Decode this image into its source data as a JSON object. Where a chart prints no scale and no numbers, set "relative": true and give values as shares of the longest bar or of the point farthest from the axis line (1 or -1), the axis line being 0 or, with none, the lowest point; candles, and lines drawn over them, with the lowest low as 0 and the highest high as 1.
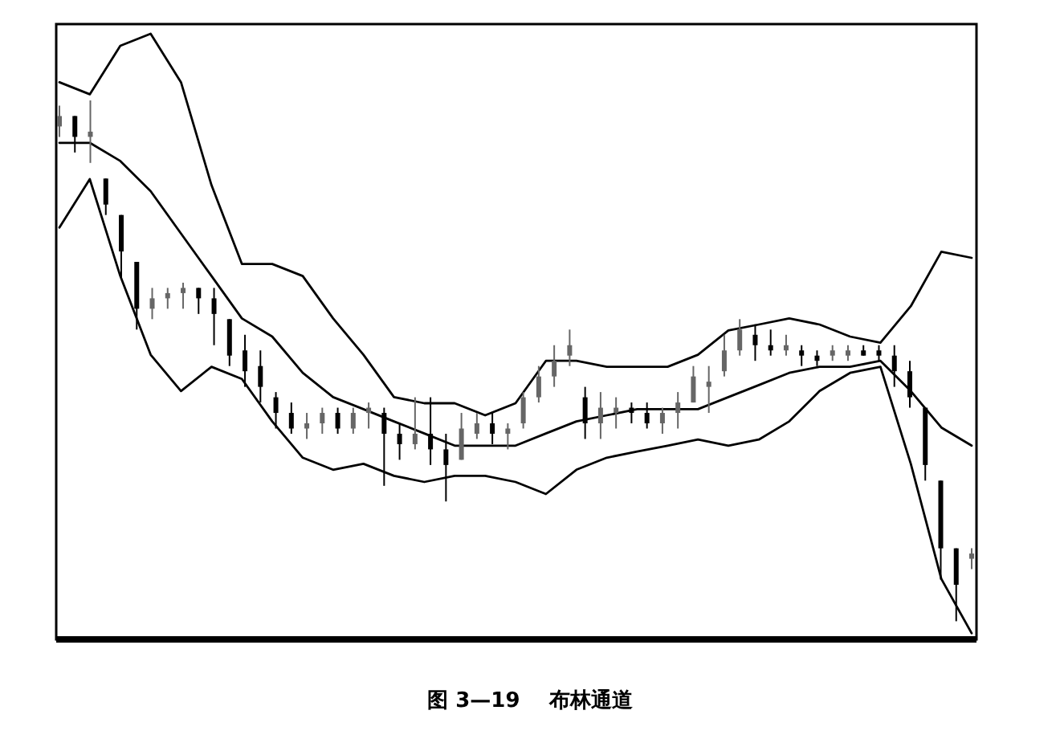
{
  "chart_data": [
    {
      "type": "line",
      "title": "图 3—19    布林通道",
      "relative": true,
      "categories": [
        null,
        null,
        null,
        null,
        null,
        null,
        null,
        null,
        null,
        null,
        null,
        null,
        null,
        null,
        null,
        null,
        null,
        null,
        null,
        null,
        null,
        null,
        null,
        null,
        null,
        null,
        null,
        null,
        null,
        null,
        null
      ],
      "series": [
        {
          "color": "#000000",
          "values": [
            0.92,
            0.9,
            0.98,
            1.0,
            0.92,
            0.75,
            0.62,
            0.62,
            0.6,
            0.53,
            0.47,
            0.4,
            0.39,
            0.39,
            0.37,
            0.39,
            0.46,
            0.46,
            0.45,
            0.45,
            0.45,
            0.47,
            0.51,
            0.52,
            0.53,
            0.52,
            0.5,
            0.49,
            0.55,
            0.64,
            0.63
          ]
        },
        {
          "color": "#000000",
          "values": [
            0.82,
            0.82,
            0.79,
            0.74,
            0.67,
            0.6,
            0.53,
            0.5,
            0.44,
            0.4,
            0.38,
            0.36,
            0.34,
            0.32,
            0.32,
            0.32,
            0.34,
            0.36,
            0.37,
            0.38,
            0.38,
            0.38,
            0.4,
            0.42,
            0.44,
            0.45,
            0.45,
            0.46,
            0.41,
            0.35,
            0.32
          ]
        },
        {
          "color": "#000000",
          "values": [
            0.68,
            0.76,
            0.6,
            0.47,
            0.41,
            0.45,
            0.43,
            0.36,
            0.3,
            0.28,
            0.29,
            0.27,
            0.26,
            0.27,
            0.27,
            0.26,
            0.24,
            0.28,
            0.3,
            0.31,
            0.32,
            0.33,
            0.32,
            0.33,
            0.36,
            0.41,
            0.44,
            0.45,
            0.29,
            0.1,
            0.01
          ]
        }
      ]
    },
    {
      "type": "candlestick",
      "relative": true,
      "colors": [
        "#666666",
        "#000000",
        "#666666",
        "#000000",
        "#000000",
        "#000000",
        "#666666",
        "#666666",
        "#666666",
        "#000000",
        "#000000",
        "#000000",
        "#000000",
        "#000000",
        "#000000",
        "#000000",
        "#666666",
        "#666666",
        "#000000",
        "#666666",
        "#666666",
        "#000000",
        "#000000",
        "#666666",
        "#000000",
        "#000000",
        "#666666",
        "#666666",
        "#000000",
        "#666666",
        "#666666",
        "#666666",
        "#666666",
        "#666666",
        "#000000",
        "#666666",
        "#666666",
        "#000000",
        "#000000",
        "#666666",
        "#666666",
        "#666666",
        "#666666",
        "#666666",
        "#666666",
        "#000000",
        "#000000",
        "#666666",
        "#000000",
        "#000000",
        "#666666",
        "#666666",
        "#000000",
        "#000000",
        "#000000",
        "#000000",
        "#000000",
        "#000000",
        "#000000",
        "#666666"
      ],
      "categories": [
        null,
        null,
        null,
        null,
        null,
        null,
        null,
        null,
        null,
        null,
        null,
        null,
        null,
        null,
        null,
        null,
        null,
        null,
        null,
        null,
        null,
        null,
        null,
        null,
        null,
        null,
        null,
        null,
        null,
        null,
        null,
        null,
        null,
        null,
        null,
        null,
        null,
        null,
        null,
        null,
        null,
        null,
        null,
        null,
        null,
        null,
        null,
        null,
        null,
        null,
        null,
        null,
        null,
        null,
        null,
        null,
        null,
        null,
        null,
        null
      ],
      "ohlc": [
        [
          0.95,
          0.99,
          0.93,
          0.97
        ],
        [
          0.97,
          0.97,
          0.9,
          0.93
        ],
        [
          0.93,
          1.0,
          0.88,
          0.94
        ],
        [
          0.85,
          0.85,
          0.78,
          0.8
        ],
        [
          0.78,
          0.78,
          0.66,
          0.71
        ],
        [
          0.69,
          0.69,
          0.56,
          0.6
        ],
        [
          0.6,
          0.64,
          0.58,
          0.62
        ],
        [
          0.62,
          0.64,
          0.6,
          0.63
        ],
        [
          0.63,
          0.65,
          0.6,
          0.64
        ],
        [
          0.64,
          0.64,
          0.59,
          0.62
        ],
        [
          0.62,
          0.64,
          0.53,
          0.59
        ],
        [
          0.58,
          0.58,
          0.49,
          0.51
        ],
        [
          0.52,
          0.55,
          0.45,
          0.48
        ],
        [
          0.49,
          0.52,
          0.42,
          0.45
        ],
        [
          0.43,
          0.44,
          0.37,
          0.4
        ],
        [
          0.4,
          0.42,
          0.36,
          0.37
        ],
        [
          0.37,
          0.4,
          0.35,
          0.38
        ],
        [
          0.38,
          0.41,
          0.36,
          0.4
        ],
        [
          0.4,
          0.41,
          0.36,
          0.37
        ],
        [
          0.37,
          0.41,
          0.36,
          0.4
        ],
        [
          0.4,
          0.42,
          0.37,
          0.41
        ],
        [
          0.4,
          0.41,
          0.26,
          0.36
        ],
        [
          0.36,
          0.38,
          0.31,
          0.34
        ],
        [
          0.34,
          0.43,
          0.33,
          0.36
        ],
        [
          0.36,
          0.43,
          0.3,
          0.33
        ],
        [
          0.33,
          0.36,
          0.23,
          0.3
        ],
        [
          0.31,
          0.4,
          0.31,
          0.37
        ],
        [
          0.36,
          0.4,
          0.35,
          0.38
        ],
        [
          0.38,
          0.4,
          0.34,
          0.36
        ],
        [
          0.36,
          0.38,
          0.33,
          0.37
        ],
        [
          0.38,
          0.44,
          0.37,
          0.43
        ],
        [
          0.43,
          0.49,
          0.42,
          0.47
        ],
        [
          0.47,
          0.53,
          0.45,
          0.5
        ],
        [
          0.51,
          0.56,
          0.49,
          0.53
        ],
        [
          0.43,
          0.45,
          0.35,
          0.38
        ],
        [
          0.38,
          0.44,
          0.35,
          0.41
        ],
        [
          0.4,
          0.43,
          0.37,
          0.41
        ],
        [
          0.41,
          0.42,
          0.38,
          0.4
        ],
        [
          0.4,
          0.42,
          0.37,
          0.38
        ],
        [
          0.38,
          0.41,
          0.36,
          0.4
        ],
        [
          0.4,
          0.44,
          0.37,
          0.42
        ],
        [
          0.42,
          0.49,
          0.42,
          0.47
        ],
        [
          0.45,
          0.49,
          0.4,
          0.46
        ],
        [
          0.48,
          0.55,
          0.47,
          0.52
        ],
        [
          0.52,
          0.58,
          0.51,
          0.56
        ],
        [
          0.55,
          0.57,
          0.5,
          0.53
        ],
        [
          0.53,
          0.56,
          0.51,
          0.52
        ],
        [
          0.52,
          0.55,
          0.51,
          0.53
        ],
        [
          0.52,
          0.53,
          0.49,
          0.51
        ],
        [
          0.51,
          0.52,
          0.49,
          0.5
        ],
        [
          0.51,
          0.53,
          0.5,
          0.52
        ],
        [
          0.51,
          0.53,
          0.5,
          0.52
        ],
        [
          0.52,
          0.53,
          0.51,
          0.51
        ],
        [
          0.52,
          0.53,
          0.5,
          0.51
        ],
        [
          0.51,
          0.53,
          0.45,
          0.48
        ],
        [
          0.48,
          0.5,
          0.41,
          0.43
        ],
        [
          0.41,
          0.41,
          0.27,
          0.3
        ],
        [
          0.27,
          0.27,
          0.08,
          0.14
        ],
        [
          0.14,
          0.14,
          0.0,
          0.07
        ],
        [
          0.12,
          0.14,
          0.1,
          0.13
        ]
      ]
    }
  ]
}
